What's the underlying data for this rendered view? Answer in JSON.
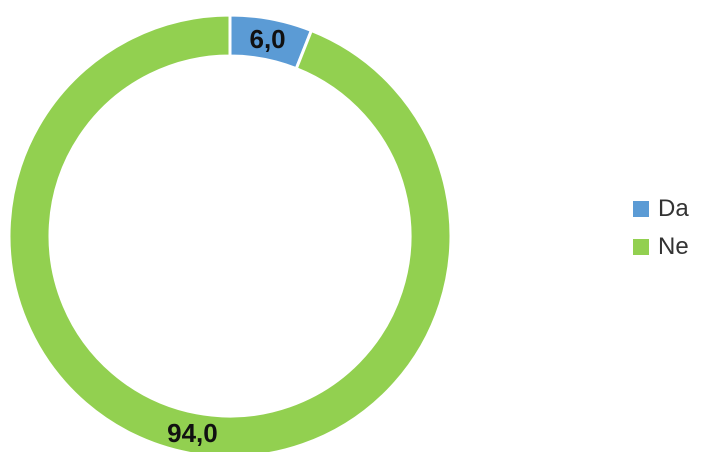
{
  "chart_data": {
    "type": "pie",
    "variant": "donut",
    "categories": [
      "Da",
      "Ne"
    ],
    "values": [
      6.0,
      94.0
    ],
    "value_labels": [
      "6,0",
      "94,0"
    ],
    "colors": [
      "#5b9bd5",
      "#92d050"
    ],
    "legend": {
      "position": "right",
      "entries": [
        "Da",
        "Ne"
      ]
    }
  }
}
